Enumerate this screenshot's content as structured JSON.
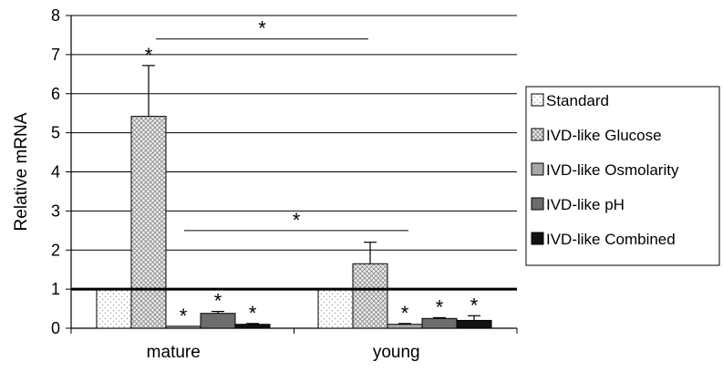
{
  "chart_data": {
    "type": "bar",
    "ylabel": "Relative mRNA",
    "ylim": [
      0,
      8
    ],
    "yticks": [
      "0",
      "1",
      "2",
      "3",
      "4",
      "5",
      "6",
      "7",
      "8"
    ],
    "categories": [
      "mature",
      "young"
    ],
    "series": [
      {
        "name": "Standard",
        "values": [
          1.0,
          1.0
        ],
        "errors": [
          0,
          0
        ],
        "pattern": "dots",
        "color": "#ffffff",
        "sig": [
          false,
          false
        ]
      },
      {
        "name": "IVD-like Glucose",
        "values": [
          5.42,
          1.65
        ],
        "errors": [
          1.3,
          0.55
        ],
        "pattern": "crosshatch",
        "color": "#e0e0e0",
        "sig": [
          true,
          false
        ]
      },
      {
        "name": "IVD-like Osmolarity",
        "values": [
          0.05,
          0.1
        ],
        "errors": [
          0.0,
          0.02
        ],
        "pattern": "solid",
        "color": "#a6a6a6",
        "sig": [
          true,
          true
        ]
      },
      {
        "name": "IVD-like pH",
        "values": [
          0.38,
          0.25
        ],
        "errors": [
          0.05,
          0.02
        ],
        "pattern": "solid",
        "color": "#6d6d6d",
        "sig": [
          true,
          true
        ]
      },
      {
        "name": "IVD-like Combined",
        "values": [
          0.1,
          0.2
        ],
        "errors": [
          0.02,
          0.12
        ],
        "pattern": "solid",
        "color": "#111111",
        "sig": [
          true,
          true
        ]
      }
    ],
    "reference_line": 1,
    "significance_brackets": [
      {
        "label": "*",
        "from_category": 0,
        "to_category": 1,
        "level": 7.4
      },
      {
        "label": "*",
        "from_category": 0,
        "to_category": 1,
        "level": 2.5
      }
    ],
    "legend_position": "right",
    "grid": true
  }
}
